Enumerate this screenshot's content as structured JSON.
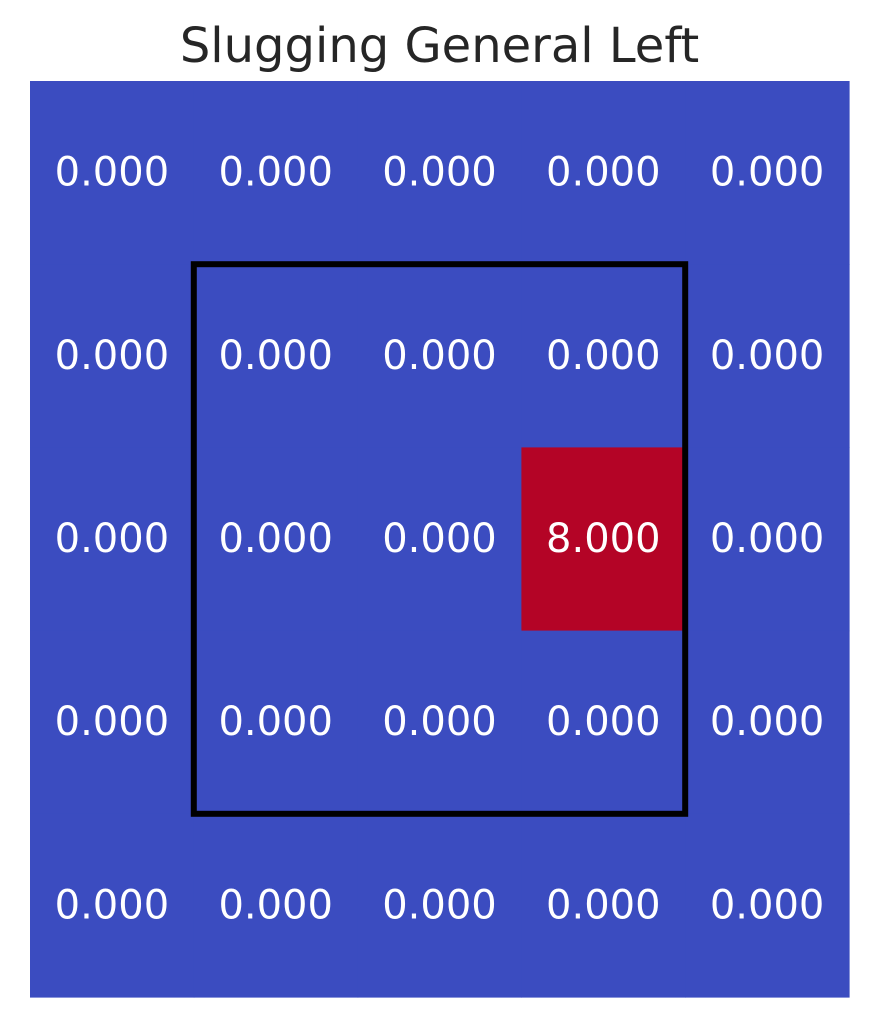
{
  "chart_data": {
    "type": "heatmap",
    "title": "Slugging General Left",
    "rows": 5,
    "cols": 5,
    "values": [
      [
        0.0,
        0.0,
        0.0,
        0.0,
        0.0
      ],
      [
        0.0,
        0.0,
        0.0,
        0.0,
        0.0
      ],
      [
        0.0,
        0.0,
        0.0,
        8.0,
        0.0
      ],
      [
        0.0,
        0.0,
        0.0,
        0.0,
        0.0
      ],
      [
        0.0,
        0.0,
        0.0,
        0.0,
        0.0
      ]
    ],
    "value_format_decimals": 3,
    "colormap": "coolwarm",
    "color_low": "#3b4cc0",
    "color_high": "#b40426",
    "strike_zone": {
      "row_start": 1,
      "row_end": 3,
      "col_start": 1,
      "col_end": 3,
      "border_color": "#000000"
    },
    "xlabel": "",
    "ylabel": "",
    "grid": false,
    "legend": "none"
  }
}
